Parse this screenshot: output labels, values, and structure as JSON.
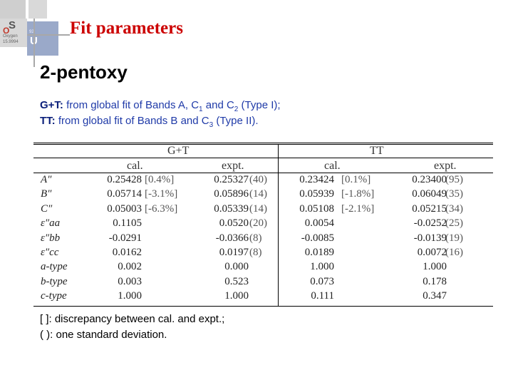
{
  "slide": {
    "title": "Fit parameters",
    "heading": "2-pentoxy",
    "note1": {
      "label": "G+T:",
      "text_a": " from global fit of Bands A, C",
      "s1": "1",
      "text_b": " and C",
      "s2": "2",
      "text_c": " (Type I);"
    },
    "note2": {
      "label": "TT:",
      "text_a": " from global fit of Bands B and C",
      "s1": "3",
      "text_b": " (Type II)."
    },
    "footnote1": "[ ]: discrepancy between cal. and expt.;",
    "footnote2": "( ): one standard deviation."
  },
  "logo": {
    "tile_a_symbol": "S",
    "tile_b_symbol": "U",
    "tile_b_number": "92",
    "tile_a_label": "Oxygen",
    "tile_a_mass": "15.9994",
    "tile_o": "O"
  },
  "table": {
    "groups": [
      "G+T",
      "TT"
    ],
    "subheaders": [
      "cal.",
      "expt.",
      "cal.",
      "expt."
    ],
    "rows": [
      {
        "param": "A″",
        "gt_cal": "0.25428",
        "gt_disc": "[0.4%]",
        "gt_expt": "0.25327",
        "gt_sd": "(40)",
        "tt_cal": "0.23424",
        "tt_disc": "[0.1%]",
        "tt_expt": "0.23400",
        "tt_sd": "(95)"
      },
      {
        "param": "B″",
        "gt_cal": "0.05714",
        "gt_disc": "[-3.1%]",
        "gt_expt": "0.05896",
        "gt_sd": "(14)",
        "tt_cal": "0.05939",
        "tt_disc": "[-1.8%]",
        "tt_expt": "0.06049",
        "tt_sd": "(35)"
      },
      {
        "param": "C″",
        "gt_cal": "0.05003",
        "gt_disc": "[-6.3%]",
        "gt_expt": "0.05339",
        "gt_sd": "(14)",
        "tt_cal": "0.05108",
        "tt_disc": "[-2.1%]",
        "tt_expt": "0.05215",
        "tt_sd": "(34)"
      },
      {
        "param": "ε″aa",
        "gt_cal": "0.1105",
        "gt_disc": "",
        "gt_expt": "0.0520",
        "gt_sd": "(20)",
        "tt_cal": "0.0054",
        "tt_disc": "",
        "tt_expt": "-0.0252",
        "tt_sd": "(25)"
      },
      {
        "param": "ε″bb",
        "gt_cal": "-0.0291",
        "gt_disc": "",
        "gt_expt": "-0.0366",
        "gt_sd": "(8)",
        "tt_cal": "-0.0085",
        "tt_disc": "",
        "tt_expt": "-0.0139",
        "tt_sd": "(19)"
      },
      {
        "param": "ε″cc",
        "gt_cal": "0.0162",
        "gt_disc": "",
        "gt_expt": "0.0197",
        "gt_sd": "(8)",
        "tt_cal": "0.0189",
        "tt_disc": "",
        "tt_expt": "0.0072",
        "tt_sd": "(16)"
      },
      {
        "param": "a-type",
        "gt_cal": "0.002",
        "gt_disc": "",
        "gt_expt": "0.000",
        "gt_sd": "",
        "tt_cal": "1.000",
        "tt_disc": "",
        "tt_expt": "1.000",
        "tt_sd": ""
      },
      {
        "param": "b-type",
        "gt_cal": "0.003",
        "gt_disc": "",
        "gt_expt": "0.523",
        "gt_sd": "",
        "tt_cal": "0.073",
        "tt_disc": "",
        "tt_expt": "0.178",
        "tt_sd": ""
      },
      {
        "param": "c-type",
        "gt_cal": "1.000",
        "gt_disc": "",
        "gt_expt": "1.000",
        "gt_sd": "",
        "tt_cal": "0.111",
        "tt_disc": "",
        "tt_expt": "0.347",
        "tt_sd": ""
      }
    ]
  }
}
